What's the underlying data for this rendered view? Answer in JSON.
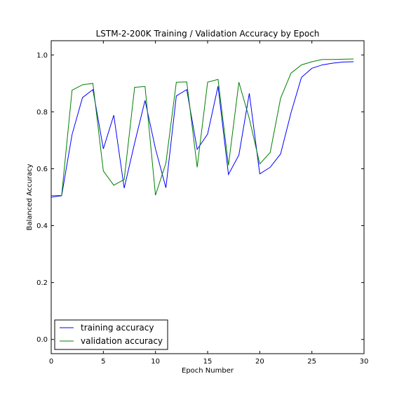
{
  "chart_data": {
    "type": "line",
    "title": "LSTM-2-200K Training / Validation Accuracy by Epoch",
    "xlabel": "Epoch Number",
    "ylabel": "Balanced Accuracy",
    "xlim": [
      0,
      30
    ],
    "ylim": [
      -0.05,
      1.05
    ],
    "x_ticks": [
      0,
      5,
      10,
      15,
      20,
      25,
      30
    ],
    "x_tick_labels": [
      "0",
      "5",
      "10",
      "15",
      "20",
      "25",
      "30"
    ],
    "y_ticks": [
      0.0,
      0.2,
      0.4,
      0.6,
      0.8,
      1.0
    ],
    "y_tick_labels": [
      "0.0",
      "0.2",
      "0.4",
      "0.6",
      "0.8",
      "1.0"
    ],
    "grid": false,
    "legend_position": "lower-left",
    "x": [
      0,
      1,
      2,
      3,
      4,
      5,
      6,
      7,
      8,
      9,
      10,
      11,
      12,
      13,
      14,
      15,
      16,
      17,
      18,
      19,
      20,
      21,
      22,
      23,
      24,
      25,
      26,
      27,
      28,
      29
    ],
    "series": [
      {
        "name": "training accuracy",
        "color": "#0000ff",
        "values": [
          0.5,
          0.505,
          0.72,
          0.85,
          0.878,
          0.67,
          0.788,
          0.532,
          0.69,
          0.84,
          0.67,
          0.533,
          0.856,
          0.878,
          0.668,
          0.722,
          0.89,
          0.58,
          0.648,
          0.865,
          0.582,
          0.605,
          0.652,
          0.797,
          0.921,
          0.953,
          0.965,
          0.971,
          0.975,
          0.976
        ]
      },
      {
        "name": "validation accuracy",
        "color": "#008000",
        "values": [
          0.506,
          0.506,
          0.876,
          0.895,
          0.9,
          0.592,
          0.542,
          0.562,
          0.886,
          0.889,
          0.507,
          0.62,
          0.904,
          0.905,
          0.605,
          0.904,
          0.914,
          0.612,
          0.904,
          0.776,
          0.617,
          0.657,
          0.848,
          0.936,
          0.965,
          0.976,
          0.984,
          0.984,
          0.985,
          0.986
        ]
      }
    ]
  }
}
